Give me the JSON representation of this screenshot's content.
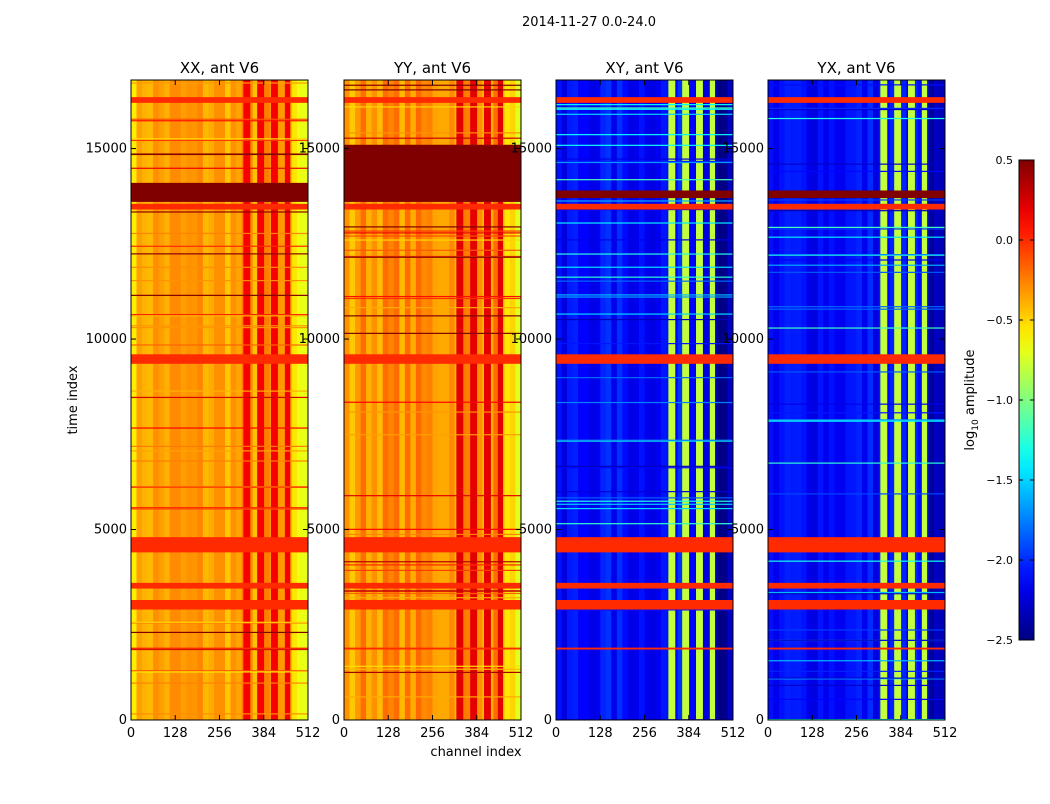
{
  "chart_data": {
    "type": "heatmap",
    "suptitle": "2014-11-27 0.0-24.0",
    "xlabel": "channel index",
    "ylabel": "time index",
    "xlim": [
      0,
      512
    ],
    "ylim": [
      0,
      16800
    ],
    "xticks": [
      0,
      128,
      256,
      384,
      512
    ],
    "yticks": [
      0,
      5000,
      10000,
      15000
    ],
    "colorbar": {
      "label_main": "log",
      "label_sub": "10",
      "label_rest": " amplitude",
      "range": [
        -2.5,
        0.5
      ],
      "ticks": [
        0.5,
        0.0,
        -0.5,
        -1.0,
        -1.5,
        -2.0,
        -2.5
      ],
      "tick_labels": [
        "0.5",
        "0.0",
        "−0.5",
        "−1.0",
        "−1.5",
        "−2.0",
        "−2.5"
      ],
      "colormap": "jet"
    },
    "panels": [
      {
        "title": "XX, ant V6",
        "baseline": -0.35,
        "rfi_max": 0.15,
        "rfi_channels": [
          [
            325,
            345
          ],
          [
            365,
            385
          ],
          [
            405,
            425
          ],
          [
            445,
            460
          ]
        ],
        "saturated_band": [
          13600,
          14100
        ],
        "flagged_bands": [
          [
            4400,
            4800
          ],
          [
            3450,
            3600
          ],
          [
            2900,
            3150
          ],
          [
            9350,
            9600
          ],
          [
            13400,
            13550
          ],
          [
            16200,
            16350
          ],
          [
            1850,
            1900
          ]
        ]
      },
      {
        "title": "YY, ant V6",
        "baseline": -0.3,
        "rfi_max": 0.2,
        "rfi_channels": [
          [
            325,
            345
          ],
          [
            365,
            385
          ],
          [
            405,
            425
          ],
          [
            445,
            460
          ]
        ],
        "saturated_band": [
          13600,
          15100
        ],
        "flagged_bands": [
          [
            4400,
            4800
          ],
          [
            3450,
            3600
          ],
          [
            2900,
            3150
          ],
          [
            9350,
            9600
          ],
          [
            13400,
            13550
          ],
          [
            16200,
            16350
          ],
          [
            1850,
            1900
          ]
        ]
      },
      {
        "title": "XY, ant V6",
        "baseline": -2.1,
        "rfi_max": -0.8,
        "rfi_channels": [
          [
            325,
            345
          ],
          [
            365,
            385
          ],
          [
            405,
            425
          ],
          [
            445,
            460
          ]
        ],
        "saturated_band": [
          13700,
          13900
        ],
        "flagged_bands": [
          [
            4400,
            4800
          ],
          [
            3450,
            3600
          ],
          [
            2900,
            3150
          ],
          [
            9350,
            9600
          ],
          [
            13400,
            13550
          ],
          [
            16200,
            16350
          ],
          [
            1850,
            1900
          ]
        ]
      },
      {
        "title": "YX, ant V6",
        "baseline": -2.1,
        "rfi_max": -0.8,
        "rfi_channels": [
          [
            325,
            345
          ],
          [
            365,
            385
          ],
          [
            405,
            425
          ],
          [
            445,
            460
          ]
        ],
        "saturated_band": [
          13700,
          13900
        ],
        "flagged_bands": [
          [
            4400,
            4800
          ],
          [
            3450,
            3600
          ],
          [
            2900,
            3150
          ],
          [
            9350,
            9600
          ],
          [
            13400,
            13550
          ],
          [
            16200,
            16350
          ],
          [
            1850,
            1900
          ]
        ]
      }
    ],
    "flag_value": 0.0
  }
}
